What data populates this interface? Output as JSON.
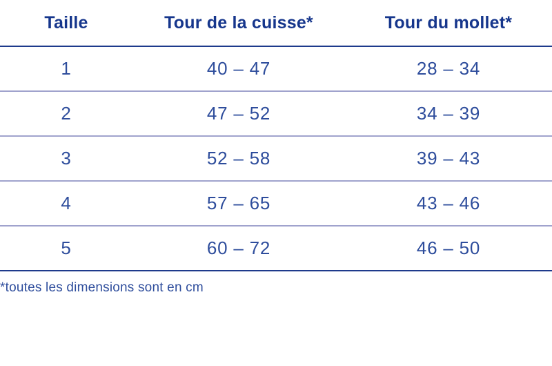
{
  "colors": {
    "header_text": "#16368c",
    "cell_text": "#2e4d9c",
    "strong_line": "#1e3a8c",
    "divider": "#a0a3cd",
    "background": "#ffffff"
  },
  "table": {
    "columns": [
      {
        "label": "Taille"
      },
      {
        "label": "Tour de la cuisse*"
      },
      {
        "label": "Tour du mollet*"
      }
    ],
    "rows": [
      {
        "taille": "1",
        "cuisse": "40 – 47",
        "mollet": "28 – 34"
      },
      {
        "taille": "2",
        "cuisse": "47 – 52",
        "mollet": "34 – 39"
      },
      {
        "taille": "3",
        "cuisse": "52 – 58",
        "mollet": "39 – 43"
      },
      {
        "taille": "4",
        "cuisse": "57 – 65",
        "mollet": "43 – 46"
      },
      {
        "taille": "5",
        "cuisse": "60 – 72",
        "mollet": "46 – 50"
      }
    ]
  },
  "footnote": "*toutes les dimensions sont en cm"
}
